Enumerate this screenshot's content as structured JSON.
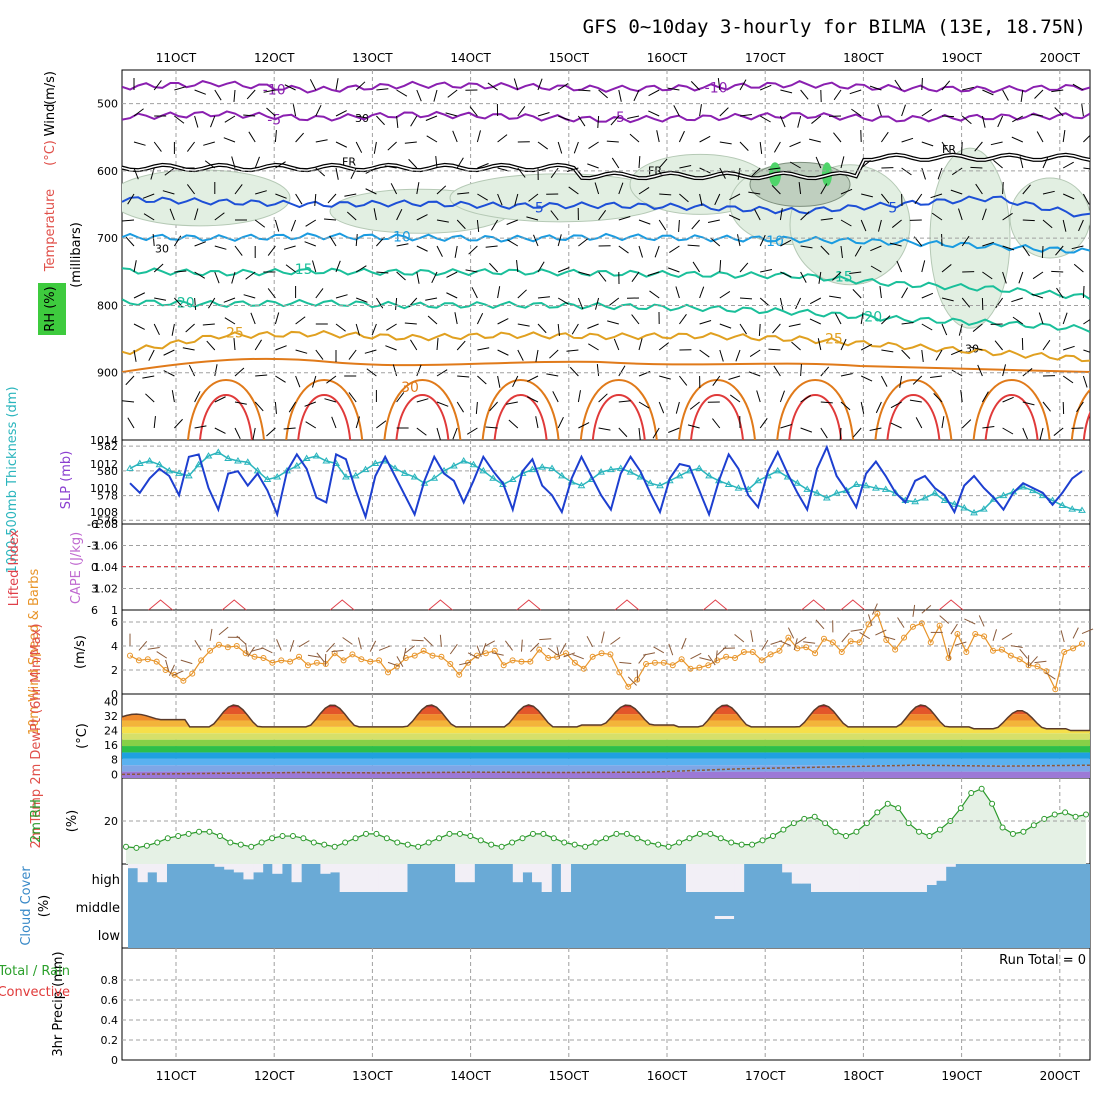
{
  "title": "GFS 0~10day 3-hourly for BILMA (13E, 18.75N)",
  "colors": {
    "grid": "#a0a0a0",
    "cloud_fill": "#6aaad6",
    "cloud_gap": "#f2eff6",
    "thickness": "#2ab5bd",
    "slp": "#1d3fd0",
    "wind10": "#e8952a",
    "barb10": "#8a5a3a",
    "rh2m": "#2c9a2c",
    "rh2m_fill": "#e5f1e5",
    "cape": "#e0404a",
    "temp_top": "#5a3a2a",
    "dew": "#8a5a3a"
  },
  "chart_data": [
    {
      "type": "contour",
      "panel": "upper-air",
      "ylabel_parts": [
        "Temperature",
        "(°C)",
        "Wind",
        "(m/s)"
      ],
      "ylabel_sub": "(millibars)",
      "rh_label": "RH (%)",
      "y_ticks": [
        500,
        600,
        700,
        800,
        900
      ],
      "ylim": [
        1000,
        450
      ],
      "x_ticks": [
        "11OCT",
        "12OCT",
        "13OCT",
        "14OCT",
        "15OCT",
        "16OCT",
        "17OCT",
        "18OCT",
        "19OCT",
        "20OCT"
      ],
      "freezing_label": "FR",
      "rh_contour_label": "30",
      "isotherms": [
        {
          "label": "-10",
          "color": "#8a1fb0",
          "levels": [
            475,
            470,
            480,
            472,
            474,
            478,
            476,
            471,
            477,
            479,
            475
          ],
          "label_slots": [
            1,
            5.5
          ]
        },
        {
          "label": "-5",
          "color": "#8a1fb0",
          "levels": [
            520,
            515,
            522,
            516,
            519,
            524,
            521,
            517,
            523,
            520,
            518
          ],
          "label_slots": [
            1,
            4.5
          ]
        },
        {
          "label": "5",
          "color": "#1d4fd6",
          "levels": [
            642,
            646,
            650,
            648,
            652,
            651,
            654,
            660,
            650,
            640,
            668
          ],
          "label_slots": [
            3.7,
            7.3
          ]
        },
        {
          "label": "10",
          "color": "#1a9be0",
          "levels": [
            698,
            700,
            697,
            699,
            701,
            698,
            700,
            702,
            706,
            712,
            720
          ],
          "label_slots": [
            2.3,
            6.1
          ]
        },
        {
          "label": "15",
          "color": "#1abf9a",
          "levels": [
            748,
            752,
            749,
            751,
            750,
            752,
            754,
            756,
            768,
            775,
            788
          ],
          "label_slots": [
            1.3,
            6.8
          ]
        },
        {
          "label": "20",
          "color": "#1abf9a",
          "levels": [
            795,
            798,
            796,
            800,
            799,
            801,
            804,
            810,
            820,
            826,
            835
          ],
          "label_slots": [
            0.1,
            7.1
          ]
        },
        {
          "label": "25",
          "color": "#e0a020",
          "levels": [
            870,
            845,
            842,
            848,
            844,
            846,
            845,
            850,
            860,
            870,
            880
          ],
          "label_slots": [
            0.6,
            6.7
          ]
        }
      ]
    },
    {
      "type": "line",
      "panel": "thickness-slp",
      "left_label": "1000-500mb Thickness (dm)",
      "right_label": "SLP (mb)",
      "left_ticks": [
        576,
        578,
        580,
        582
      ],
      "right_ticks": [
        1008,
        1010,
        1012,
        1014
      ],
      "thickness": [
        580.2,
        580.6,
        580.8,
        580.5,
        580.0,
        579.8,
        579.6,
        580.5,
        581.2,
        581.5,
        581.0,
        580.8,
        580.7,
        580.0,
        579.3,
        579.5,
        580.0,
        580.4,
        581.0,
        581.2,
        580.8,
        580.6,
        579.5,
        579.6,
        580.1,
        580.6,
        580.8,
        580.2,
        579.8,
        579.5,
        579.0,
        579.4,
        580.0,
        580.4,
        580.8,
        580.5,
        580.0,
        579.4,
        578.9,
        579.3,
        579.8,
        580.1,
        580.3,
        580.2,
        579.6,
        579.1,
        578.8,
        579.3,
        579.9,
        580.1,
        580.2,
        579.9,
        579.5,
        579.0,
        578.8,
        579.2,
        579.6,
        580.0,
        580.2,
        579.6,
        579.2,
        578.9,
        578.6,
        578.5,
        579.2,
        579.6,
        580.0,
        579.5,
        579.0,
        578.5,
        578.2,
        577.8,
        578.2,
        578.4,
        578.9,
        578.8,
        578.6,
        578.5,
        578.2,
        577.6,
        577.5,
        577.8,
        578.2,
        577.6,
        577.3,
        577.0,
        576.6,
        576.9,
        577.7,
        578.0,
        578.3,
        578.7,
        578.4,
        578.0,
        577.6,
        577.2,
        576.9,
        576.8
      ],
      "slp": [
        1010.4,
        1009.6,
        1010.8,
        1011.6,
        1011.0,
        1009.4,
        1012.6,
        1012.8,
        1010.0,
        1008.2,
        1011.2,
        1011.4,
        1010.2,
        1011.2,
        1009.8,
        1007.8,
        1011.4,
        1012.8,
        1011.6,
        1009.2,
        1008.8,
        1012.8,
        1012.4,
        1009.8,
        1007.6,
        1011.0,
        1012.6,
        1011.0,
        1009.4,
        1007.8,
        1010.6,
        1012.6,
        1011.2,
        1010.6,
        1008.8,
        1010.6,
        1012.6,
        1011.4,
        1010.4,
        1008.2,
        1011.4,
        1012.4,
        1010.2,
        1009.4,
        1008.0,
        1010.8,
        1012.6,
        1011.0,
        1009.4,
        1008.2,
        1011.2,
        1012.6,
        1011.4,
        1009.6,
        1008.0,
        1010.8,
        1012.0,
        1011.8,
        1009.8,
        1007.8,
        1010.6,
        1012.8,
        1011.6,
        1009.4,
        1008.4,
        1011.4,
        1013.0,
        1011.2,
        1009.6,
        1008.2,
        1011.6,
        1013.4,
        1011.0,
        1009.8,
        1008.4,
        1011.2,
        1012.2,
        1011.0,
        1009.6,
        1008.8,
        1010.6,
        1011.0,
        1010.0,
        1009.4,
        1008.0,
        1010.2,
        1011.0,
        1010.0,
        1009.2,
        1008.2,
        1009.6,
        1010.4,
        1010.0,
        1009.6,
        1008.6,
        1009.6,
        1010.8,
        1011.4
      ]
    },
    {
      "type": "line",
      "panel": "lifted-index-cape",
      "left_label": "Lifted Index",
      "right_label": "CAPE (J/kg)",
      "left_ticks": [
        "-6",
        "-3",
        "0",
        "3",
        "6"
      ],
      "right_ticks": [
        "1",
        "1.02",
        "1.04",
        "1.06",
        "1.08"
      ],
      "cape_bumps_day": [
        0.25,
        1.0,
        2.1,
        3.1,
        4.0,
        5.0,
        5.9,
        6.9,
        7.3,
        8.3
      ]
    },
    {
      "type": "line",
      "panel": "wind10m",
      "ylabel": "10m Wind Speed & Barbs",
      "unit": "(m/s)",
      "ylim": [
        0,
        7
      ],
      "y_ticks": [
        0,
        2,
        4,
        6
      ],
      "values": [
        3.2,
        2.8,
        2.9,
        2.7,
        2.0,
        1.6,
        1.1,
        1.7,
        2.8,
        3.6,
        4.1,
        3.9,
        4.0,
        3.4,
        3.1,
        3.0,
        2.6,
        2.8,
        2.7,
        3.1,
        2.4,
        2.6,
        2.5,
        3.4,
        2.8,
        3.3,
        2.9,
        2.7,
        2.8,
        1.8,
        2.3,
        3.0,
        3.2,
        3.6,
        3.2,
        3.1,
        2.5,
        1.6,
        2.6,
        3.2,
        3.4,
        3.6,
        2.4,
        2.8,
        2.7,
        2.7,
        3.7,
        3.0,
        3.1,
        3.4,
        2.6,
        2.1,
        3.1,
        3.4,
        3.3,
        1.8,
        0.6,
        1.2,
        2.5,
        2.6,
        2.6,
        2.4,
        2.9,
        2.1,
        2.2,
        2.4,
        2.8,
        3.1,
        3.0,
        3.5,
        3.5,
        2.8,
        3.3,
        3.6,
        4.7,
        3.8,
        3.9,
        3.4,
        4.6,
        4.3,
        3.5,
        4.4,
        4.3,
        5.8,
        6.7,
        4.5,
        3.7,
        4.7,
        5.6,
        5.9,
        4.3,
        5.7,
        3.0,
        5.0,
        3.5,
        5.0,
        4.8,
        3.6,
        3.7,
        3.2,
        2.9,
        2.4,
        2.3,
        1.9,
        0.4,
        3.5,
        3.8,
        4.2
      ]
    },
    {
      "type": "area",
      "panel": "temp-dewpoint",
      "ylabel": "2m Temp 2m DewPt (6hr Min/Max)",
      "unit": "(°C)",
      "ylim": [
        -2,
        44
      ],
      "y_ticks": [
        0,
        8,
        16,
        24,
        32,
        40
      ],
      "day_max": [
        33,
        38,
        38,
        38,
        38,
        38,
        38,
        38,
        38,
        35,
        33
      ],
      "night_min": [
        30,
        26,
        26,
        26,
        26,
        27,
        26,
        26,
        26,
        25,
        24
      ],
      "dewpoint": [
        0,
        0.5,
        1,
        0.8,
        1.2,
        1,
        1.2,
        3,
        4,
        5,
        4.5,
        5
      ],
      "color_bands": [
        "#9c79d6",
        "#7fa6e6",
        "#5ab1f0",
        "#1fa0e0",
        "#2cbf4a",
        "#86d047",
        "#d6e06a",
        "#f6df4a",
        "#f3b43a",
        "#ef8a2c",
        "#e3562a",
        "#cf2626",
        "#9b0c18"
      ]
    },
    {
      "type": "area",
      "panel": "rh2m",
      "ylabel": "2m RH",
      "unit": "(%)",
      "ylim": [
        0,
        40
      ],
      "y_ticks": [
        20
      ],
      "values": [
        8,
        7.5,
        8.5,
        10,
        12,
        13,
        14,
        15,
        15,
        13,
        10,
        9,
        8,
        10,
        12,
        13,
        13,
        12,
        10,
        9,
        8,
        10,
        12,
        14,
        14,
        12,
        10,
        9,
        8,
        10,
        12,
        14,
        14,
        13,
        11,
        9,
        8,
        10,
        12,
        14,
        14,
        12,
        10,
        9,
        8,
        10,
        12,
        14,
        14,
        12,
        10,
        9,
        8,
        10,
        12,
        14,
        14,
        12,
        10,
        9,
        9,
        11,
        13,
        16,
        19,
        21,
        22,
        19,
        15,
        13,
        15,
        19,
        24,
        28,
        26,
        19,
        15,
        13,
        16,
        20,
        26,
        33,
        35,
        28,
        17,
        14,
        15,
        18,
        21,
        23,
        24,
        22,
        23
      ]
    },
    {
      "type": "bar",
      "panel": "cloud-cover",
      "ylabel": "Cloud Cover",
      "unit": "(%)",
      "categories": [
        "high",
        "middle",
        "low"
      ],
      "high_cover": [
        85,
        35,
        70,
        35,
        100,
        100,
        100,
        100,
        100,
        90,
        80,
        70,
        45,
        70,
        100,
        65,
        100,
        35,
        100,
        100,
        65,
        70,
        0,
        0,
        0,
        0,
        0,
        0,
        0,
        100,
        100,
        100,
        100,
        100,
        35,
        35,
        100,
        100,
        100,
        100,
        35,
        70,
        35,
        0,
        100,
        0,
        100,
        100,
        100,
        100,
        100,
        100,
        100,
        100,
        100,
        100,
        100,
        100,
        0,
        0,
        0,
        0,
        0,
        0,
        100,
        100,
        100,
        100,
        70,
        30,
        30,
        0,
        0,
        0,
        0,
        0,
        0,
        0,
        0,
        0,
        0,
        0,
        0,
        25,
        40,
        90,
        100,
        100,
        100,
        100,
        100,
        100,
        100,
        100,
        100,
        100,
        100,
        100,
        100,
        100
      ],
      "middle_gap_index": 61
    },
    {
      "type": "bar",
      "panel": "precip",
      "ylabel": "3hr Precip (mm)",
      "left_labels": [
        "Total / Rain",
        "Convective"
      ],
      "ylim": [
        0,
        1
      ],
      "y_ticks": [
        "0",
        "0.2",
        "0.4",
        "0.6",
        "0.8"
      ],
      "run_total": "Run Total = 0",
      "values": []
    }
  ]
}
